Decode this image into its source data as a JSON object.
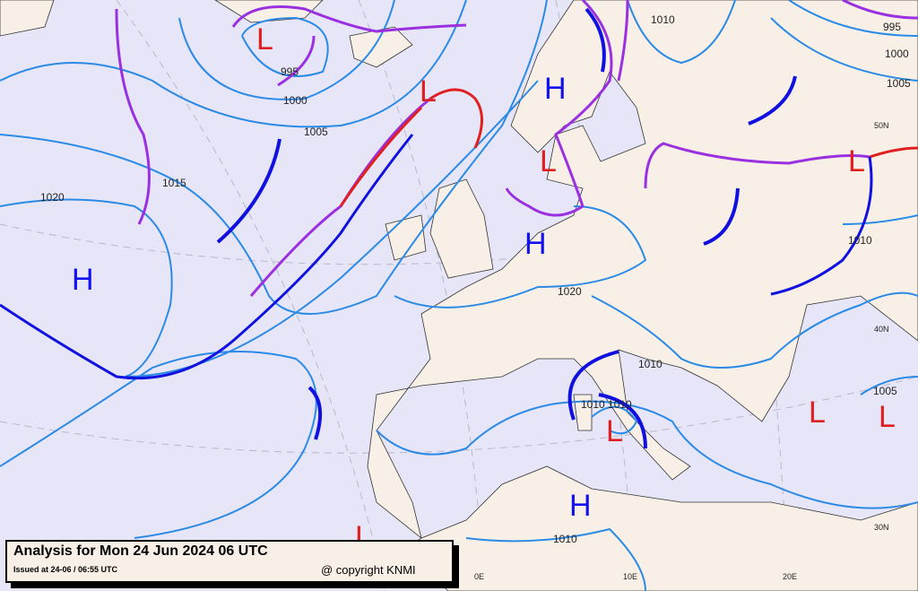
{
  "caption": {
    "title": "Analysis for Mon 24 Jun 2024 06 UTC",
    "issued": "Issued at 24-06 / 06:55 UTC",
    "copyright": "@ copyright KNMI"
  },
  "colors": {
    "sea": "#e6e6f8",
    "land": "#f8f0e6",
    "isobar": "#2a8ae6",
    "cold_front": "#1010e0",
    "warm_front": "#e02020",
    "occluded_front": "#9a30e0",
    "high": "#1010f0",
    "low": "#e02020"
  },
  "isobar_labels": [
    "995",
    "1000",
    "1005",
    "1015",
    "1020",
    "1020",
    "1010",
    "1010",
    "1010",
    "995",
    "1000",
    "1005",
    "1010",
    "1005",
    "1010 1010"
  ],
  "graticule_labels": [
    "50N",
    "40N",
    "30N",
    "0E",
    "10E",
    "20E"
  ],
  "pressure_centers": {
    "highs": [
      "H",
      "H",
      "H",
      "H"
    ],
    "lows": [
      "L",
      "L",
      "L",
      "L",
      "L",
      "L",
      "L",
      "L"
    ]
  }
}
